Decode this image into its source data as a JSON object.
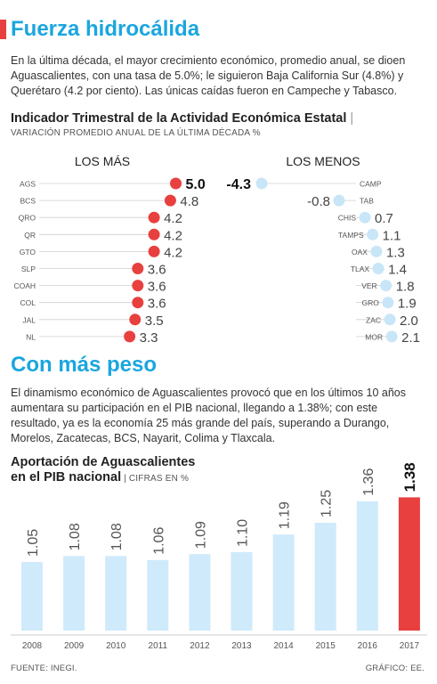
{
  "section1": {
    "title": "Fuerza hidrocálida",
    "paragraph": "En la última década, el mayor crecimiento económico, promedio anual, se dioen Aguascalientes, con una tasa de 5.0%; le siguieron Baja California Sur (4.8%) y Querétaro (4.2 por ciento). Las únicas caídas fueron en Campeche y Tabasco.",
    "chart_title": "Indicador Trimestral de la Actividad Económica Estatal",
    "chart_subtitle": "VARIACIÓN PROMEDIO ANUAL DE LA ÚLTIMA DÉCADA %"
  },
  "section2": {
    "title": "Con más peso",
    "paragraph": "El dinamismo económico de Aguascalientes provocó que en los últimos 10 años aumentara su participación en el PIB nacional, llegando a 1.38%; con este resultado, ya es la economía 25 más grande del país, superando a Durango, Morelos, Zacatecas, BCS, Nayarit, Colima y Tlaxcala.",
    "chart_title_line1": "Aportación de Aguascalientes",
    "chart_title_line2": "en el PIB nacional",
    "chart_subtitle": "CIFRAS EN %"
  },
  "footer": {
    "source": "FUENTE: INEGI.",
    "credit": "GRÁFICO: EE."
  },
  "colors": {
    "accent_red": "#e8403f",
    "accent_blue": "#1aa6df",
    "light_blue": "#c8e6f8",
    "bar_blue": "#cfeafb"
  },
  "chart_data": [
    {
      "type": "scatter",
      "title": "LOS MÁS",
      "categories": [
        "AGS",
        "BCS",
        "QRO",
        "QR",
        "GTO",
        "SLP",
        "COAH",
        "COL",
        "JAL",
        "NL"
      ],
      "values": [
        5.0,
        4.8,
        4.2,
        4.2,
        4.2,
        3.6,
        3.6,
        3.6,
        3.5,
        3.3
      ],
      "labels": [
        "5.0",
        "4.8",
        "4.2",
        "4.2",
        "4.2",
        "3.6",
        "3.6",
        "3.6",
        "3.5",
        "3.3"
      ],
      "color": "#e8403f"
    },
    {
      "type": "scatter",
      "title": "LOS MENOS",
      "categories": [
        "CAMP",
        "TAB",
        "CHIS",
        "TAMPS",
        "OAX",
        "TLAX",
        "VER",
        "GRO",
        "ZAC",
        "MOR"
      ],
      "values": [
        -4.3,
        -0.8,
        0.7,
        1.1,
        1.3,
        1.4,
        1.8,
        1.9,
        2.0,
        2.1
      ],
      "labels": [
        "-4.3",
        "-0.8",
        "0.7",
        "1.1",
        "1.3",
        "1.4",
        "1.8",
        "1.9",
        "2.0",
        "2.1"
      ],
      "color": "#c8e6f8"
    },
    {
      "type": "bar",
      "categories": [
        "2008",
        "2009",
        "2010",
        "2011",
        "2012",
        "2013",
        "2014",
        "2015",
        "2016",
        "2017"
      ],
      "values": [
        1.05,
        1.08,
        1.08,
        1.06,
        1.09,
        1.1,
        1.19,
        1.25,
        1.36,
        1.38
      ],
      "labels": [
        "1.05",
        "1.08",
        "1.08",
        "1.06",
        "1.09",
        "1.10",
        "1.19",
        "1.25",
        "1.36",
        "1.38"
      ],
      "highlight_index": 9
    }
  ]
}
